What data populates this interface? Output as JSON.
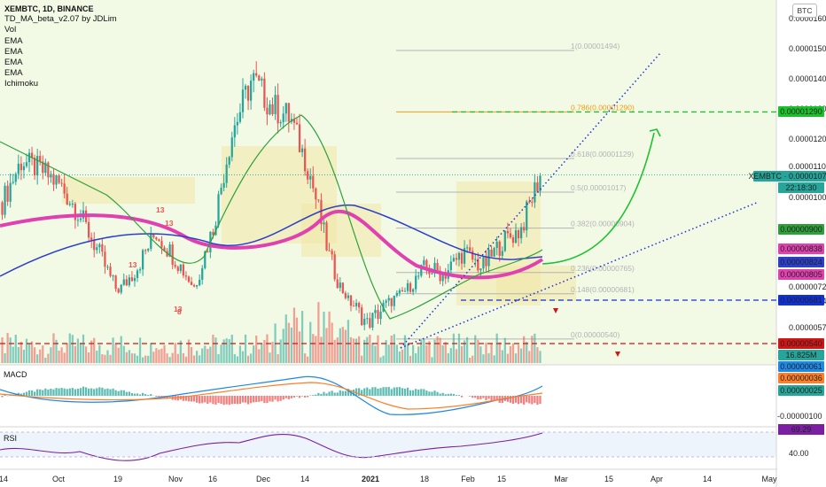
{
  "legend": {
    "title": "XEMBTC, 1D, BINANCE",
    "lines": [
      "TD_MA_beta_v2.07 by JDLim",
      "Vol",
      "EMA",
      "EMA",
      "EMA",
      "EMA",
      "Ichimoku"
    ]
  },
  "currency_button": "BTC",
  "panes": {
    "macd_label": "MACD",
    "rsi_label": "RSI"
  },
  "colors": {
    "bg_main": "#f2fae6",
    "bg_osc": "#eef4fb",
    "bull": "#26a69a",
    "bear": "#ef5350",
    "ema_pink": "#e040b0",
    "ema_blue": "#2c3fc9",
    "td_line": "#2ea03a",
    "cloud": "#f3e6a6",
    "fib": "#b3b3b3",
    "fib_786": "#f39c12",
    "dotted": "#1f2fd6",
    "green_target": "#19c22b",
    "support": "#1030d8",
    "red_line": "#d01515"
  },
  "chart_data": {
    "type": "candlestick",
    "symbol": "XEMBTC",
    "interval": "1D",
    "exchange": "BINANCE",
    "x_ticks": [
      "14",
      "Oct",
      "19",
      "Nov",
      "16",
      "Dec",
      "14",
      "2021",
      "18",
      "Feb",
      "15",
      "Mar",
      "15",
      "Apr",
      "14",
      "May"
    ],
    "y_ticks": [
      1.6e-05,
      1.5e-05,
      1.4e-05,
      1.3e-05,
      1.2e-05,
      1.1e-05,
      1e-05,
      7.2e-06,
      6.4e-06,
      5.7e-06
    ],
    "y_tick_labels": [
      "0.00001600",
      "0.00001500",
      "0.00001400",
      "0.00001300",
      "0.00001200",
      "0.00001100",
      "0.00001000",
      "0.00000720",
      "0.00000640",
      "0.00000570"
    ],
    "close_path": [
      9.85e-06,
      1.12e-05,
      1.09e-05,
      1.04e-05,
      9.5e-06,
      8.3e-06,
      7e-06,
      7.8e-06,
      8.9e-06,
      8.1e-06,
      7.2e-06,
      9.1e-06,
      1.23e-05,
      1.4e-05,
      1.31e-05,
      1.27e-05,
      1.08e-05,
      8.2e-06,
      6.5e-06,
      5.8e-06,
      6.3e-06,
      7e-06,
      7.8e-06,
      7.6e-06,
      8.3e-06,
      7.8e-06,
      8.6e-06,
      9e-06,
      1.073e-05
    ],
    "fib_levels": [
      {
        "ratio": "1",
        "price": 1.494e-05,
        "label": "1(0.00001494)"
      },
      {
        "ratio": "0.786",
        "price": 1.29e-05,
        "label": "0.786(0.00001290)"
      },
      {
        "ratio": "0.618",
        "price": 1.129e-05,
        "label": "0.618(0.00001129)"
      },
      {
        "ratio": "0.5",
        "price": 1.017e-05,
        "label": "0.5(0.00001017)"
      },
      {
        "ratio": "0.382",
        "price": 9.04e-06,
        "label": "0.382(0.00000904)"
      },
      {
        "ratio": "0.236",
        "price": 7.65e-06,
        "label": "0.236(0.00000765)"
      },
      {
        "ratio": "0.148",
        "price": 6.81e-06,
        "label": "0.148(0.00000681)"
      },
      {
        "ratio": "0",
        "price": 5.4e-06,
        "label": "0(0.00000540)"
      }
    ],
    "price_tags": [
      {
        "text": "0.00001290",
        "color": "#19c22b"
      },
      {
        "text": "XEMBTC · 0.00001073",
        "color": "#26a69a"
      },
      {
        "text": "22:18:30",
        "color": "#26a69a"
      },
      {
        "text": "0.00000900",
        "color": "#2ea03a"
      },
      {
        "text": "0.00000838",
        "color": "#e040b0"
      },
      {
        "text": "0.00000824",
        "color": "#2c3fc9"
      },
      {
        "text": "0.00000805",
        "color": "#e040b0"
      },
      {
        "text": "0.00000681",
        "color": "#1030d8"
      },
      {
        "text": "0.00000540",
        "color": "#d01515"
      },
      {
        "text": "16.825M",
        "color": "#26a69a"
      },
      {
        "text": "0.00000061",
        "color": "#1e88e5"
      },
      {
        "text": "0.00000036",
        "color": "#ff7f27"
      },
      {
        "text": "0.00000025",
        "color": "#26a69a"
      }
    ],
    "macd": {
      "label": "MACD",
      "axis_ticks": [
        "-0.00000100"
      ],
      "values_shown": [
        "0.00000061",
        "0.00000036",
        "0.00000025"
      ]
    },
    "rsi": {
      "label": "RSI",
      "value": "69.29",
      "ticks": [
        "40.00"
      ]
    },
    "td_labels": [
      "13",
      "13",
      "8",
      "13",
      "13"
    ],
    "annotations": [
      "dotted ascending channel from January low",
      "green curved arrow projecting toward 0.786 level",
      "dashed green target line at 0.786 level",
      "dashed blue support at 0.148 level",
      "dashed red support at 0 level",
      "red down arrows near supports"
    ]
  }
}
